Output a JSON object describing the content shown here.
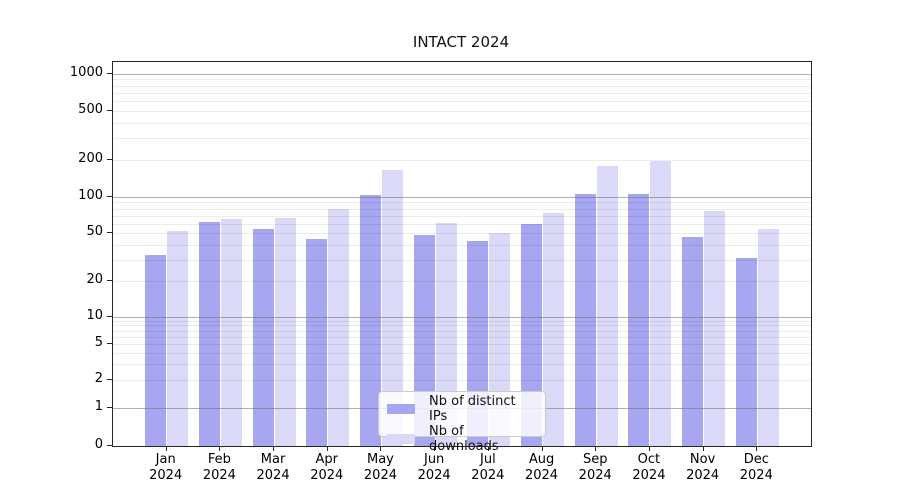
{
  "title": "INTACT 2024",
  "colors": {
    "ips_bar": "#a6a6f1",
    "downloads_bar": "#dadaf8",
    "axis": "#262626",
    "major_grid": "#b0b0b0",
    "minor_grid": "#ebebeb",
    "background": "#ffffff"
  },
  "legend": {
    "items": [
      {
        "label": "Nb of distinct IPs",
        "series": "ips"
      },
      {
        "label": "Nb of downloads",
        "series": "downloads"
      }
    ],
    "position": "lower center"
  },
  "chart_data": {
    "type": "bar",
    "title": "INTACT 2024",
    "categories": [
      "Jan",
      "Feb",
      "Mar",
      "Apr",
      "May",
      "Jun",
      "Jul",
      "Aug",
      "Sep",
      "Oct",
      "Nov",
      "Dec"
    ],
    "category_year": "2024",
    "series": [
      {
        "name": "Nb of distinct IPs",
        "values": [
          33,
          62,
          54,
          45,
          103,
          48,
          43,
          60,
          105,
          106,
          46,
          31
        ]
      },
      {
        "name": "Nb of downloads",
        "values": [
          52,
          65,
          67,
          80,
          165,
          61,
          50,
          74,
          178,
          197,
          77,
          54
        ]
      }
    ],
    "xlabel": "",
    "ylabel": "",
    "y_scale": "symlog",
    "y_ticks": [
      0,
      1,
      2,
      5,
      10,
      20,
      50,
      100,
      200,
      500,
      1000
    ],
    "y_major_grid": [
      1,
      10,
      100,
      1000
    ],
    "ylim": [
      0,
      1300
    ],
    "grid": "on"
  }
}
